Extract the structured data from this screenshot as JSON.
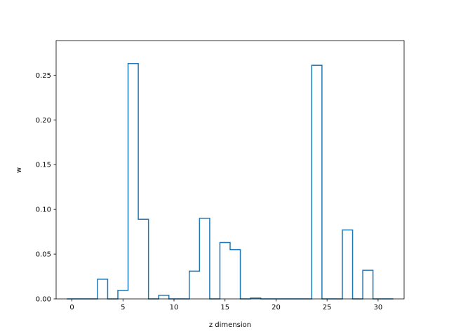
{
  "chart_data": {
    "type": "step",
    "title": "",
    "xlabel": "z dimension",
    "ylabel": "w",
    "xlim": [
      -1.55,
      32.55
    ],
    "ylim": [
      0.0,
      0.2886
    ],
    "grid": false,
    "line_color": "#1f77b4",
    "x_ticks": [
      0,
      5,
      10,
      15,
      20,
      25,
      30
    ],
    "x_tick_labels": [
      "0",
      "5",
      "10",
      "15",
      "20",
      "25",
      "30"
    ],
    "y_ticks": [
      0.0,
      0.05,
      0.1,
      0.15,
      0.2,
      0.25
    ],
    "y_tick_labels": [
      "0.00",
      "0.05",
      "0.10",
      "0.15",
      "0.20",
      "0.25"
    ],
    "x": [
      0,
      1,
      2,
      3,
      4,
      5,
      6,
      7,
      8,
      9,
      10,
      11,
      12,
      13,
      14,
      15,
      16,
      17,
      18,
      19,
      20,
      21,
      22,
      23,
      24,
      25,
      26,
      27,
      28,
      29,
      30,
      31
    ],
    "values": [
      0.0,
      0.0,
      0.0,
      0.022,
      0.0,
      0.0095,
      0.263,
      0.089,
      0.0,
      0.004,
      0.0,
      0.0,
      0.031,
      0.09,
      0.0,
      0.063,
      0.055,
      0.0,
      0.001,
      0.0,
      0.0,
      0.0,
      0.0,
      0.0,
      0.261,
      0.0,
      0.0,
      0.077,
      0.0,
      0.032,
      0.0,
      0.0
    ]
  }
}
